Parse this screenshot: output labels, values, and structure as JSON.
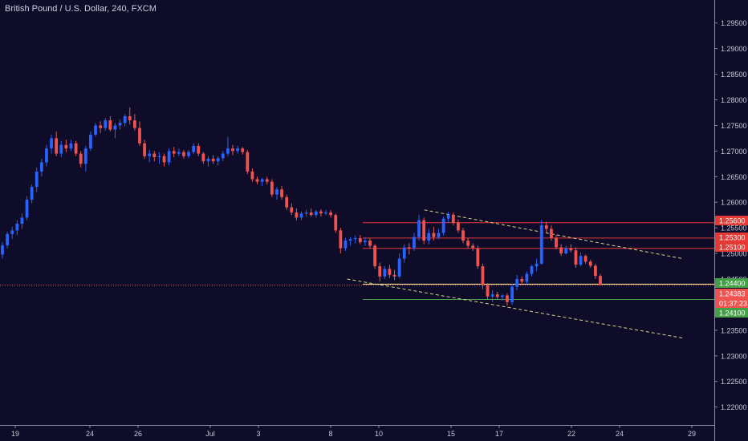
{
  "header": {
    "title": "British Pound / U.S. Dollar, 240, FXCM"
  },
  "colors": {
    "background": "#0e0c28",
    "up_candle": "#2962ff",
    "down_candle": "#ef5350",
    "resistance_line": "#e53935",
    "support_line": "#43a047",
    "entry_line": "#fff59d",
    "trendline": "#d8d48a",
    "axis_text": "#c8c8d8"
  },
  "chart_data": {
    "type": "candlestick",
    "symbol": "British Pound / U.S. Dollar",
    "interval": "240",
    "source": "FXCM",
    "ylim": [
      1.2165,
      1.2995
    ],
    "y_ticks": [
      "1.29500",
      "1.29000",
      "1.28500",
      "1.28000",
      "1.27500",
      "1.27000",
      "1.26500",
      "1.26000",
      "1.25500",
      "1.25000",
      "1.24500",
      "1.24000",
      "1.23500",
      "1.23000",
      "1.22500",
      "1.22000"
    ],
    "x_ticks": [
      "19",
      "24",
      "26",
      "Jul",
      "3",
      "8",
      "10",
      "15",
      "17",
      "22",
      "24",
      "29"
    ],
    "price_labels": [
      {
        "value": "1.25600",
        "color": "#e53935"
      },
      {
        "value": "1.25300",
        "color": "#e53935"
      },
      {
        "value": "1.25100",
        "color": "#e53935"
      },
      {
        "value": "1.24400",
        "color": "#43a047"
      },
      {
        "value": "1.24383",
        "color": "#ef5350"
      },
      {
        "value": "01:37:23",
        "color": "#ef5350"
      },
      {
        "value": "1.24100",
        "color": "#43a047"
      }
    ],
    "horizontal_levels": [
      {
        "name": "resistance",
        "price": 1.256
      },
      {
        "name": "resistance",
        "price": 1.253
      },
      {
        "name": "resistance",
        "price": 1.251
      },
      {
        "name": "entry",
        "price": 1.244
      },
      {
        "name": "target",
        "price": 1.241
      }
    ],
    "current_price": 1.24383,
    "trendlines": [
      {
        "name": "upper",
        "points": [
          [
            1.2585,
            0.594
          ],
          [
            1.249,
            0.955
          ]
        ]
      },
      {
        "name": "lower",
        "points": [
          [
            1.245,
            0.486
          ],
          [
            1.2335,
            0.955
          ]
        ]
      }
    ],
    "candles": [
      [
        1.2498,
        1.2522,
        1.249,
        1.2516
      ],
      [
        1.2516,
        1.2542,
        1.251,
        1.2538
      ],
      [
        1.2538,
        1.2552,
        1.2528,
        1.2545
      ],
      [
        1.2545,
        1.2565,
        1.2536,
        1.2558
      ],
      [
        1.2558,
        1.2578,
        1.2548,
        1.257
      ],
      [
        1.257,
        1.2612,
        1.2565,
        1.2605
      ],
      [
        1.2605,
        1.2635,
        1.2598,
        1.263
      ],
      [
        1.263,
        1.2668,
        1.262,
        1.266
      ],
      [
        1.266,
        1.2685,
        1.265,
        1.2678
      ],
      [
        1.2678,
        1.2712,
        1.267,
        1.2705
      ],
      [
        1.2705,
        1.2732,
        1.2695,
        1.2725
      ],
      [
        1.2725,
        1.2738,
        1.269,
        1.2695
      ],
      [
        1.2695,
        1.272,
        1.2688,
        1.2712
      ],
      [
        1.2712,
        1.2722,
        1.2698,
        1.2705
      ],
      [
        1.2705,
        1.2722,
        1.27,
        1.2715
      ],
      [
        1.2715,
        1.272,
        1.269,
        1.2695
      ],
      [
        1.2695,
        1.27,
        1.2668,
        1.2675
      ],
      [
        1.2675,
        1.271,
        1.266,
        1.2705
      ],
      [
        1.2705,
        1.2738,
        1.27,
        1.2732
      ],
      [
        1.2732,
        1.2755,
        1.2728,
        1.275
      ],
      [
        1.275,
        1.2758,
        1.2735,
        1.2745
      ],
      [
        1.2745,
        1.2765,
        1.274,
        1.276
      ],
      [
        1.276,
        1.2768,
        1.2738,
        1.2742
      ],
      [
        1.2742,
        1.2755,
        1.2725,
        1.275
      ],
      [
        1.275,
        1.2762,
        1.2742,
        1.2755
      ],
      [
        1.2755,
        1.2772,
        1.2748,
        1.2768
      ],
      [
        1.2768,
        1.2785,
        1.2752,
        1.276
      ],
      [
        1.276,
        1.2772,
        1.274,
        1.2745
      ],
      [
        1.2745,
        1.2758,
        1.271,
        1.2715
      ],
      [
        1.2715,
        1.2722,
        1.2685,
        1.269
      ],
      [
        1.269,
        1.2702,
        1.2678,
        1.2695
      ],
      [
        1.2695,
        1.27,
        1.268,
        1.2688
      ],
      [
        1.2688,
        1.2698,
        1.2675,
        1.269
      ],
      [
        1.269,
        1.2695,
        1.267,
        1.2678
      ],
      [
        1.2678,
        1.2705,
        1.2672,
        1.27
      ],
      [
        1.27,
        1.2708,
        1.2688,
        1.2695
      ],
      [
        1.2695,
        1.2705,
        1.269,
        1.2698
      ],
      [
        1.2698,
        1.2702,
        1.2685,
        1.269
      ],
      [
        1.269,
        1.2702,
        1.2686,
        1.2698
      ],
      [
        1.2698,
        1.2715,
        1.2694,
        1.271
      ],
      [
        1.271,
        1.2715,
        1.269,
        1.2695
      ],
      [
        1.2695,
        1.2698,
        1.2675,
        1.268
      ],
      [
        1.268,
        1.269,
        1.267,
        1.2685
      ],
      [
        1.2685,
        1.2692,
        1.2675,
        1.268
      ],
      [
        1.268,
        1.269,
        1.2672,
        1.2686
      ],
      [
        1.2686,
        1.27,
        1.268,
        1.2695
      ],
      [
        1.2695,
        1.2728,
        1.269,
        1.2705
      ],
      [
        1.2705,
        1.2712,
        1.2692,
        1.27
      ],
      [
        1.27,
        1.271,
        1.2695,
        1.2705
      ],
      [
        1.2705,
        1.2708,
        1.2693,
        1.2698
      ],
      [
        1.2698,
        1.2702,
        1.2655,
        1.266
      ],
      [
        1.266,
        1.2666,
        1.264,
        1.2645
      ],
      [
        1.2645,
        1.265,
        1.2635,
        1.264
      ],
      [
        1.264,
        1.2648,
        1.2632,
        1.2645
      ],
      [
        1.2645,
        1.265,
        1.2635,
        1.264
      ],
      [
        1.264,
        1.2645,
        1.261,
        1.2615
      ],
      [
        1.2615,
        1.263,
        1.2605,
        1.2625
      ],
      [
        1.2625,
        1.2632,
        1.2605,
        1.261
      ],
      [
        1.261,
        1.2615,
        1.2585,
        1.259
      ],
      [
        1.259,
        1.2598,
        1.2575,
        1.258
      ],
      [
        1.258,
        1.2588,
        1.2565,
        1.257
      ],
      [
        1.257,
        1.2582,
        1.2565,
        1.2578
      ],
      [
        1.2578,
        1.2585,
        1.2572,
        1.258
      ],
      [
        1.258,
        1.2588,
        1.2572,
        1.2575
      ],
      [
        1.2575,
        1.2585,
        1.257,
        1.2582
      ],
      [
        1.2582,
        1.2586,
        1.2572,
        1.2578
      ],
      [
        1.2578,
        1.2585,
        1.2575,
        1.258
      ],
      [
        1.258,
        1.2585,
        1.257,
        1.2575
      ],
      [
        1.2575,
        1.2578,
        1.254,
        1.2545
      ],
      [
        1.2545,
        1.255,
        1.25,
        1.251
      ],
      [
        1.251,
        1.253,
        1.2505,
        1.2525
      ],
      [
        1.2525,
        1.2532,
        1.2515,
        1.2528
      ],
      [
        1.2528,
        1.2535,
        1.252,
        1.253
      ],
      [
        1.253,
        1.2536,
        1.2518,
        1.2522
      ],
      [
        1.2522,
        1.2532,
        1.2515,
        1.2525
      ],
      [
        1.2525,
        1.253,
        1.251,
        1.2515
      ],
      [
        1.2515,
        1.2518,
        1.247,
        1.2475
      ],
      [
        1.2475,
        1.2482,
        1.2445,
        1.2455
      ],
      [
        1.2455,
        1.2475,
        1.245,
        1.247
      ],
      [
        1.247,
        1.2478,
        1.2452,
        1.2458
      ],
      [
        1.2458,
        1.2468,
        1.2448,
        1.2455
      ],
      [
        1.2455,
        1.25,
        1.2452,
        1.249
      ],
      [
        1.249,
        1.2518,
        1.2482,
        1.2512
      ],
      [
        1.2512,
        1.252,
        1.2498,
        1.251
      ],
      [
        1.251,
        1.254,
        1.2505,
        1.2532
      ],
      [
        1.2532,
        1.2575,
        1.2525,
        1.2565
      ],
      [
        1.2565,
        1.257,
        1.2518,
        1.2525
      ],
      [
        1.2525,
        1.2548,
        1.2518,
        1.254
      ],
      [
        1.254,
        1.2552,
        1.2525,
        1.2532
      ],
      [
        1.2532,
        1.2548,
        1.2528,
        1.254
      ],
      [
        1.254,
        1.2572,
        1.2535,
        1.2568
      ],
      [
        1.2568,
        1.2582,
        1.256,
        1.2575
      ],
      [
        1.2575,
        1.258,
        1.2555,
        1.256
      ],
      [
        1.256,
        1.2566,
        1.254,
        1.2545
      ],
      [
        1.2545,
        1.255,
        1.252,
        1.2525
      ],
      [
        1.2525,
        1.253,
        1.251,
        1.2515
      ],
      [
        1.2515,
        1.252,
        1.2505,
        1.251
      ],
      [
        1.251,
        1.2515,
        1.247,
        1.2475
      ],
      [
        1.2475,
        1.248,
        1.243,
        1.2438
      ],
      [
        1.2438,
        1.2442,
        1.241,
        1.2416
      ],
      [
        1.2416,
        1.2428,
        1.2405,
        1.242
      ],
      [
        1.242,
        1.2425,
        1.241,
        1.2415
      ],
      [
        1.2415,
        1.242,
        1.2408,
        1.2418
      ],
      [
        1.2418,
        1.2422,
        1.2398,
        1.2405
      ],
      [
        1.2405,
        1.244,
        1.24,
        1.2435
      ],
      [
        1.2435,
        1.2458,
        1.2428,
        1.245
      ],
      [
        1.245,
        1.2455,
        1.244,
        1.2445
      ],
      [
        1.2445,
        1.2465,
        1.244,
        1.246
      ],
      [
        1.246,
        1.2478,
        1.2455,
        1.2475
      ],
      [
        1.2475,
        1.249,
        1.2465,
        1.248
      ],
      [
        1.248,
        1.2565,
        1.2478,
        1.2555
      ],
      [
        1.2555,
        1.2562,
        1.254,
        1.2548
      ],
      [
        1.2548,
        1.2555,
        1.2525,
        1.253
      ],
      [
        1.253,
        1.2536,
        1.2508,
        1.2512
      ],
      [
        1.2512,
        1.2518,
        1.2495,
        1.25
      ],
      [
        1.25,
        1.2515,
        1.2498,
        1.251
      ],
      [
        1.251,
        1.2518,
        1.2502,
        1.2506
      ],
      [
        1.2506,
        1.2512,
        1.2472,
        1.2478
      ],
      [
        1.2478,
        1.2502,
        1.2475,
        1.2495
      ],
      [
        1.2495,
        1.2498,
        1.248,
        1.2484
      ],
      [
        1.2484,
        1.2488,
        1.2472,
        1.2476
      ],
      [
        1.2476,
        1.248,
        1.245,
        1.2456
      ],
      [
        1.2456,
        1.246,
        1.2438,
        1.2438
      ]
    ]
  }
}
